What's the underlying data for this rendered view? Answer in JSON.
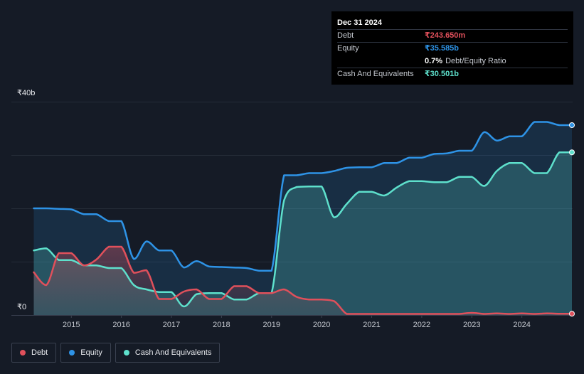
{
  "tooltip": {
    "date": "Dec 31 2024",
    "rows": [
      {
        "label": "Debt",
        "value": "₹243.650m",
        "color": "#e0505b"
      },
      {
        "label": "Equity",
        "value": "₹35.585b",
        "color": "#2e93e6"
      },
      {
        "label": "",
        "value": "0.7%",
        "suffix": "Debt/Equity Ratio",
        "color": "#ffffff"
      },
      {
        "label": "Cash And Equivalents",
        "value": "₹30.501b",
        "color": "#5ee0cc"
      }
    ]
  },
  "legend": [
    {
      "label": "Debt",
      "color": "#e0505b"
    },
    {
      "label": "Equity",
      "color": "#2e93e6"
    },
    {
      "label": "Cash And Equivalents",
      "color": "#5ee0cc"
    }
  ],
  "chart_data": {
    "type": "area",
    "ylabel_top": "₹40b",
    "ylabel_bottom": "₹0",
    "ylim": [
      0,
      40
    ],
    "xlim": [
      2014.25,
      2025.0
    ],
    "x_ticks": [
      "2015",
      "2016",
      "2017",
      "2018",
      "2019",
      "2020",
      "2021",
      "2022",
      "2023",
      "2024"
    ],
    "grid": true,
    "series": [
      {
        "name": "Equity",
        "color": "#2e93e6",
        "points": [
          [
            2014.25,
            20.0
          ],
          [
            2014.5,
            20.0
          ],
          [
            2014.75,
            19.9
          ],
          [
            2015.0,
            19.8
          ],
          [
            2015.25,
            18.9
          ],
          [
            2015.5,
            18.9
          ],
          [
            2015.75,
            17.6
          ],
          [
            2016.0,
            17.6
          ],
          [
            2016.25,
            10.5
          ],
          [
            2016.5,
            13.8
          ],
          [
            2016.75,
            12.1
          ],
          [
            2017.0,
            12.1
          ],
          [
            2017.25,
            8.9
          ],
          [
            2017.5,
            10.1
          ],
          [
            2017.75,
            9.1
          ],
          [
            2018.0,
            9.0
          ],
          [
            2018.25,
            8.9
          ],
          [
            2018.5,
            8.8
          ],
          [
            2018.75,
            8.3
          ],
          [
            2019.0,
            8.3
          ],
          [
            2019.25,
            26.2
          ],
          [
            2019.5,
            26.2
          ],
          [
            2019.75,
            26.6
          ],
          [
            2020.0,
            26.6
          ],
          [
            2020.25,
            27.0
          ],
          [
            2020.5,
            27.6
          ],
          [
            2020.75,
            27.7
          ],
          [
            2021.0,
            27.7
          ],
          [
            2021.25,
            28.5
          ],
          [
            2021.5,
            28.5
          ],
          [
            2021.75,
            29.5
          ],
          [
            2022.0,
            29.5
          ],
          [
            2022.25,
            30.2
          ],
          [
            2022.5,
            30.3
          ],
          [
            2022.75,
            30.8
          ],
          [
            2023.0,
            30.8
          ],
          [
            2023.25,
            34.3
          ],
          [
            2023.5,
            32.7
          ],
          [
            2023.75,
            33.5
          ],
          [
            2024.0,
            33.5
          ],
          [
            2024.25,
            36.2
          ],
          [
            2024.5,
            36.2
          ],
          [
            2024.75,
            35.6
          ],
          [
            2025.0,
            35.6
          ]
        ]
      },
      {
        "name": "Cash And Equivalents",
        "color": "#5ee0cc",
        "points": [
          [
            2014.25,
            12.1
          ],
          [
            2014.5,
            12.5
          ],
          [
            2014.75,
            10.3
          ],
          [
            2015.0,
            10.3
          ],
          [
            2015.25,
            9.3
          ],
          [
            2015.5,
            9.3
          ],
          [
            2015.75,
            8.8
          ],
          [
            2016.0,
            8.8
          ],
          [
            2016.25,
            5.6
          ],
          [
            2016.5,
            4.8
          ],
          [
            2016.75,
            4.3
          ],
          [
            2017.0,
            4.3
          ],
          [
            2017.25,
            1.6
          ],
          [
            2017.5,
            3.9
          ],
          [
            2017.75,
            4.1
          ],
          [
            2018.0,
            4.1
          ],
          [
            2018.25,
            2.9
          ],
          [
            2018.5,
            2.9
          ],
          [
            2018.75,
            4.1
          ],
          [
            2019.0,
            4.1
          ],
          [
            2019.25,
            21.5
          ],
          [
            2019.5,
            24.0
          ],
          [
            2019.75,
            24.1
          ],
          [
            2020.0,
            24.1
          ],
          [
            2020.25,
            18.3
          ],
          [
            2020.5,
            20.8
          ],
          [
            2020.75,
            23.1
          ],
          [
            2021.0,
            23.1
          ],
          [
            2021.25,
            22.4
          ],
          [
            2021.5,
            23.9
          ],
          [
            2021.75,
            25.1
          ],
          [
            2022.0,
            25.1
          ],
          [
            2022.25,
            24.9
          ],
          [
            2022.5,
            24.9
          ],
          [
            2022.75,
            25.9
          ],
          [
            2023.0,
            25.9
          ],
          [
            2023.25,
            24.2
          ],
          [
            2023.5,
            27.0
          ],
          [
            2023.75,
            28.5
          ],
          [
            2024.0,
            28.5
          ],
          [
            2024.25,
            26.6
          ],
          [
            2024.5,
            26.6
          ],
          [
            2024.75,
            30.5
          ],
          [
            2025.0,
            30.5
          ]
        ]
      },
      {
        "name": "Debt",
        "color": "#e0505b",
        "points": [
          [
            2014.25,
            8.0
          ],
          [
            2014.5,
            5.6
          ],
          [
            2014.75,
            11.6
          ],
          [
            2015.0,
            11.6
          ],
          [
            2015.25,
            9.3
          ],
          [
            2015.5,
            10.4
          ],
          [
            2015.75,
            12.8
          ],
          [
            2016.0,
            12.8
          ],
          [
            2016.25,
            7.9
          ],
          [
            2016.5,
            8.4
          ],
          [
            2016.75,
            3.0
          ],
          [
            2017.0,
            3.0
          ],
          [
            2017.25,
            4.4
          ],
          [
            2017.5,
            4.8
          ],
          [
            2017.75,
            3.0
          ],
          [
            2018.0,
            3.0
          ],
          [
            2018.25,
            5.4
          ],
          [
            2018.5,
            5.4
          ],
          [
            2018.75,
            4.1
          ],
          [
            2019.0,
            4.1
          ],
          [
            2019.25,
            4.8
          ],
          [
            2019.5,
            3.4
          ],
          [
            2019.75,
            2.9
          ],
          [
            2020.0,
            2.9
          ],
          [
            2020.25,
            2.6
          ],
          [
            2020.5,
            0.2
          ],
          [
            2020.75,
            0.2
          ],
          [
            2021.0,
            0.2
          ],
          [
            2021.25,
            0.2
          ],
          [
            2021.5,
            0.2
          ],
          [
            2021.75,
            0.2
          ],
          [
            2022.0,
            0.2
          ],
          [
            2022.25,
            0.2
          ],
          [
            2022.5,
            0.2
          ],
          [
            2022.75,
            0.2
          ],
          [
            2023.0,
            0.4
          ],
          [
            2023.25,
            0.2
          ],
          [
            2023.5,
            0.3
          ],
          [
            2023.75,
            0.2
          ],
          [
            2024.0,
            0.3
          ],
          [
            2024.25,
            0.2
          ],
          [
            2024.5,
            0.3
          ],
          [
            2024.75,
            0.24
          ],
          [
            2025.0,
            0.24
          ]
        ]
      }
    ]
  }
}
